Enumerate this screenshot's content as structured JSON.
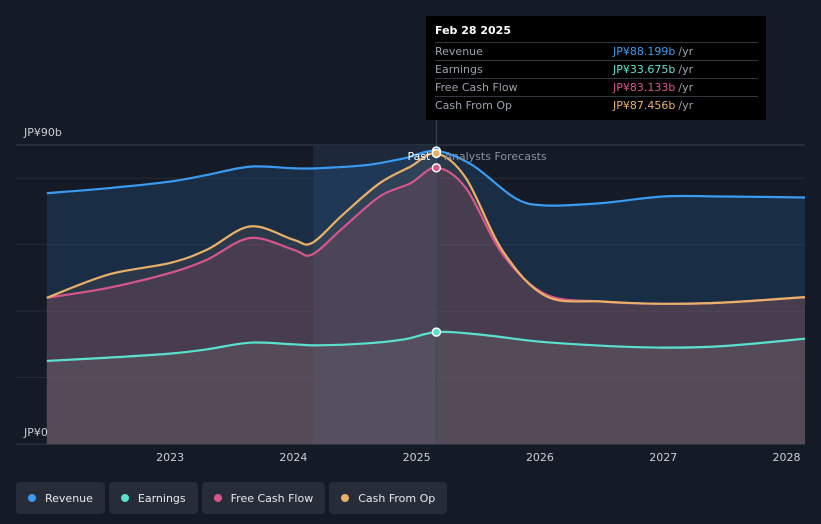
{
  "chart_data": {
    "type": "area",
    "y_labels": {
      "top": "JP¥90b",
      "bottom": "JP¥0"
    },
    "ylim": [
      0,
      90
    ],
    "x_ticks": [
      "2023",
      "2024",
      "2025",
      "2026",
      "2027",
      "2028"
    ],
    "x_tick_values": [
      2023.0,
      2024.0,
      2025.0,
      2026.0,
      2027.0,
      2028.0
    ],
    "xlim": [
      2021.75,
      2028.15
    ],
    "past_label": "Past",
    "forecast_label": "Analysts Forecasts",
    "divider_x": 2025.16,
    "shade_start_x": 2024.16,
    "series": [
      {
        "name": "Revenue",
        "color": "#3a9bf0",
        "x": [
          2022.0,
          2022.5,
          2023.0,
          2023.3,
          2023.65,
          2024.0,
          2024.2,
          2024.6,
          2024.9,
          2025.16,
          2025.45,
          2025.8,
          2026.05,
          2026.5,
          2027.0,
          2027.5,
          2028.15
        ],
        "y": [
          75.5,
          77.0,
          79.0,
          81.0,
          83.5,
          83.0,
          83.0,
          84.0,
          86.0,
          88.199,
          84.0,
          74.0,
          71.8,
          72.5,
          74.5,
          74.5,
          74.2
        ]
      },
      {
        "name": "Earnings",
        "color": "#5be0cf",
        "x": [
          2022.0,
          2022.5,
          2023.0,
          2023.3,
          2023.65,
          2024.0,
          2024.2,
          2024.6,
          2024.9,
          2025.16,
          2025.5,
          2026.0,
          2026.5,
          2027.0,
          2027.5,
          2028.15
        ],
        "y": [
          25.0,
          26.0,
          27.2,
          28.5,
          30.5,
          30.0,
          29.7,
          30.3,
          31.5,
          33.675,
          33.0,
          30.8,
          29.6,
          29.0,
          29.5,
          31.7
        ]
      },
      {
        "name": "Free Cash Flow",
        "color": "#d6568c",
        "x": [
          2022.0,
          2022.5,
          2023.0,
          2023.3,
          2023.65,
          2024.0,
          2024.15,
          2024.4,
          2024.7,
          2024.95,
          2025.16,
          2025.4,
          2025.7,
          2026.05,
          2026.5,
          2027.0,
          2027.5,
          2028.15
        ],
        "y": [
          44.0,
          47.0,
          51.5,
          55.5,
          62.0,
          58.5,
          57.0,
          65.0,
          74.5,
          78.5,
          83.133,
          77.0,
          57.0,
          45.0,
          42.9,
          42.2,
          42.6,
          44.2
        ]
      },
      {
        "name": "Cash From Op",
        "color": "#e8b069",
        "x": [
          2022.0,
          2022.5,
          2023.0,
          2023.3,
          2023.65,
          2024.0,
          2024.15,
          2024.4,
          2024.7,
          2024.95,
          2025.16,
          2025.4,
          2025.7,
          2026.05,
          2026.5,
          2027.0,
          2027.5,
          2028.15
        ],
        "y": [
          44.0,
          51.0,
          54.5,
          58.5,
          65.5,
          61.5,
          60.5,
          69.0,
          78.5,
          83.5,
          87.456,
          80.0,
          58.0,
          44.5,
          42.9,
          42.2,
          42.6,
          44.2
        ]
      }
    ],
    "markers_x": 2025.16
  },
  "tooltip": {
    "date": "Feb 28 2025",
    "rows": [
      {
        "name": "Revenue",
        "value": "JP¥88.199b",
        "unit": "/yr",
        "color": "#3a9bf0"
      },
      {
        "name": "Earnings",
        "value": "JP¥33.675b",
        "unit": "/yr",
        "color": "#5be0cf"
      },
      {
        "name": "Free Cash Flow",
        "value": "JP¥83.133b",
        "unit": "/yr",
        "color": "#d6568c"
      },
      {
        "name": "Cash From Op",
        "value": "JP¥87.456b",
        "unit": "/yr",
        "color": "#e8b069"
      }
    ]
  },
  "legend": [
    {
      "label": "Revenue",
      "color": "#3a9bf0"
    },
    {
      "label": "Earnings",
      "color": "#5be0cf"
    },
    {
      "label": "Free Cash Flow",
      "color": "#d6568c"
    },
    {
      "label": "Cash From Op",
      "color": "#e8b069"
    }
  ]
}
